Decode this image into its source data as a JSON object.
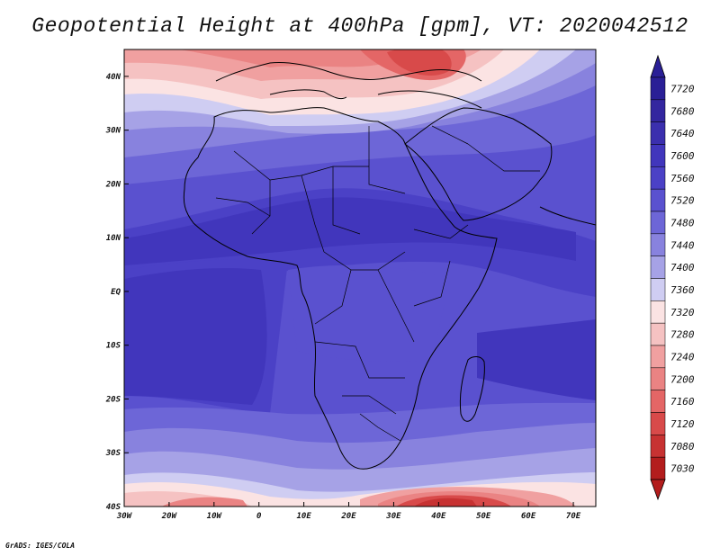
{
  "title": "Geopotential Height at 400hPa [gpm], VT: 2020042512",
  "credit": "GrADS: IGES/COLA",
  "map": {
    "lon_range": [
      -30,
      75
    ],
    "lat_range": [
      -40,
      45
    ],
    "x_ticks": [
      "30W",
      "20W",
      "10W",
      "0",
      "10E",
      "20E",
      "30E",
      "40E",
      "50E",
      "60E",
      "70E"
    ],
    "y_ticks": [
      "40S",
      "30S",
      "20S",
      "10S",
      "EQ",
      "10N",
      "20N",
      "30N",
      "40N"
    ]
  },
  "colorbar": {
    "levels": [
      "7720",
      "7680",
      "7640",
      "7600",
      "7560",
      "7520",
      "7480",
      "7440",
      "7400",
      "7360",
      "7320",
      "7280",
      "7240",
      "7200",
      "7160",
      "7120",
      "7080",
      "7030"
    ],
    "colors": [
      "#2a1f96",
      "#33269f",
      "#3b2fae",
      "#4136bc",
      "#4b41c6",
      "#5a51cf",
      "#6d66d7",
      "#8882de",
      "#a6a2e6",
      "#cfcdf2",
      "#fbe3e3",
      "#f5c2c2",
      "#f0a0a0",
      "#ea8383",
      "#e46666",
      "#d84a4a",
      "#c73232",
      "#b31d1d"
    ]
  }
}
